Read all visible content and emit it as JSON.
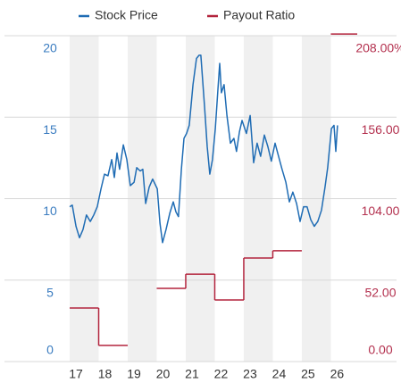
{
  "chart_data": {
    "type": "line",
    "series": [
      {
        "name": "Stock Price",
        "color": "#1f6cb4",
        "x": [
          2017.0,
          2017.09,
          2017.22,
          2017.34,
          2017.46,
          2017.58,
          2017.71,
          2017.83,
          2017.95,
          2018.08,
          2018.2,
          2018.32,
          2018.45,
          2018.54,
          2018.63,
          2018.72,
          2018.85,
          2018.97,
          2019.09,
          2019.22,
          2019.31,
          2019.43,
          2019.52,
          2019.62,
          2019.74,
          2019.86,
          2020.02,
          2020.11,
          2020.2,
          2020.32,
          2020.45,
          2020.57,
          2020.66,
          2020.75,
          2020.85,
          2020.94,
          2021.03,
          2021.12,
          2021.25,
          2021.37,
          2021.46,
          2021.52,
          2021.65,
          2021.74,
          2021.83,
          2021.92,
          2022.02,
          2022.11,
          2022.17,
          2022.23,
          2022.32,
          2022.42,
          2022.54,
          2022.66,
          2022.75,
          2022.85,
          2022.94,
          2023.09,
          2023.22,
          2023.34,
          2023.46,
          2023.58,
          2023.71,
          2023.83,
          2023.95,
          2024.08,
          2024.2,
          2024.32,
          2024.45,
          2024.57,
          2024.69,
          2024.82,
          2024.94,
          2025.06,
          2025.18,
          2025.31,
          2025.43,
          2025.55,
          2025.68,
          2025.8,
          2025.89,
          2026.02,
          2026.11,
          2026.17,
          2026.23
        ],
        "values": [
          9.5,
          9.6,
          8.3,
          7.6,
          8.1,
          9.0,
          8.6,
          9.0,
          9.5,
          10.6,
          11.5,
          11.4,
          12.4,
          11.3,
          12.8,
          11.8,
          13.3,
          12.4,
          10.8,
          11.0,
          11.9,
          11.7,
          11.8,
          9.7,
          10.7,
          11.2,
          10.6,
          8.5,
          7.3,
          8.1,
          9.1,
          9.8,
          9.2,
          8.9,
          11.8,
          13.7,
          14.0,
          14.5,
          17.0,
          18.6,
          18.8,
          18.8,
          15.6,
          13.2,
          11.5,
          12.4,
          14.3,
          16.7,
          18.3,
          16.5,
          17.0,
          15.1,
          13.4,
          13.7,
          12.9,
          14.1,
          14.8,
          14.0,
          15.1,
          12.2,
          13.4,
          12.6,
          13.9,
          13.2,
          12.3,
          13.4,
          12.6,
          11.8,
          11.0,
          9.8,
          10.4,
          9.7,
          8.6,
          9.5,
          9.5,
          8.7,
          8.3,
          8.6,
          9.3,
          10.7,
          11.9,
          14.3,
          14.5,
          12.9,
          14.5
        ]
      },
      {
        "name": "Payout Ratio",
        "color": "#b3243d",
        "axis": "y2",
        "x": [
          2017,
          2018,
          2019,
          2020,
          2021,
          2022,
          2023,
          2024,
          2025,
          2026
        ],
        "values": [
          34.2,
          10.3,
          null,
          46.7,
          55.8,
          39.3,
          66.1,
          70.7,
          null,
          209.1
        ]
      }
    ],
    "xlim": [
      2017,
      2026.91
    ],
    "xticks": [
      {
        "value": 2017,
        "label": "17"
      },
      {
        "value": 2018,
        "label": "18"
      },
      {
        "value": 2019,
        "label": "19"
      },
      {
        "value": 2020,
        "label": "20"
      },
      {
        "value": 2021,
        "label": "21"
      },
      {
        "value": 2022,
        "label": "22"
      },
      {
        "value": 2023,
        "label": "23"
      },
      {
        "value": 2024,
        "label": "24"
      },
      {
        "value": 2025,
        "label": "25"
      },
      {
        "value": 2026,
        "label": "26"
      }
    ],
    "ylim": [
      0,
      20
    ],
    "yticks": [
      0,
      5,
      10,
      15,
      20
    ],
    "y2lim": [
      0,
      208
    ],
    "y2ticks": [
      {
        "value": 0,
        "label": "0.00"
      },
      {
        "value": 52,
        "label": "52.00"
      },
      {
        "value": 104,
        "label": "104.00"
      },
      {
        "value": 156,
        "label": "156.00"
      },
      {
        "value": 208,
        "label": "208.00%"
      }
    ],
    "grid": true
  }
}
